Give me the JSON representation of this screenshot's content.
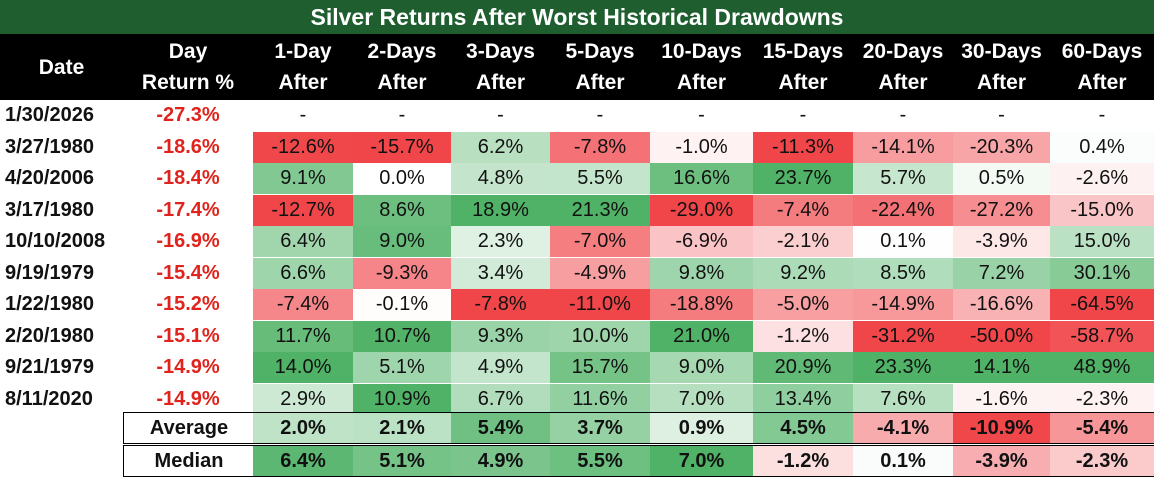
{
  "chart_data": {
    "type": "table",
    "title": "Silver Returns After Worst Historical Drawdowns",
    "columns": [
      {
        "line1": "Date",
        "line2": ""
      },
      {
        "line1": "Day",
        "line2": "Return %"
      },
      {
        "line1": "1-Day",
        "line2": "After"
      },
      {
        "line1": "2-Days",
        "line2": "After"
      },
      {
        "line1": "3-Days",
        "line2": "After"
      },
      {
        "line1": "5-Days",
        "line2": "After"
      },
      {
        "line1": "10-Days",
        "line2": "After"
      },
      {
        "line1": "15-Days",
        "line2": "After"
      },
      {
        "line1": "20-Days",
        "line2": "After"
      },
      {
        "line1": "30-Days",
        "line2": "After"
      },
      {
        "line1": "60-Days",
        "line2": "After"
      }
    ],
    "rows": [
      {
        "date": "1/30/2026",
        "day_return": "-27.3%",
        "values": [
          "-",
          "-",
          "-",
          "-",
          "-",
          "-",
          "-",
          "-",
          "-"
        ]
      },
      {
        "date": "3/27/1980",
        "day_return": "-18.6%",
        "values": [
          "-12.6%",
          "-15.7%",
          "6.2%",
          "-7.8%",
          "-1.0%",
          "-11.3%",
          "-14.1%",
          "-20.3%",
          "0.4%"
        ]
      },
      {
        "date": "4/20/2006",
        "day_return": "-18.4%",
        "values": [
          "9.1%",
          "0.0%",
          "4.8%",
          "5.5%",
          "16.6%",
          "23.7%",
          "5.7%",
          "0.5%",
          "-2.6%"
        ]
      },
      {
        "date": "3/17/1980",
        "day_return": "-17.4%",
        "values": [
          "-12.7%",
          "8.6%",
          "18.9%",
          "21.3%",
          "-29.0%",
          "-7.4%",
          "-22.4%",
          "-27.2%",
          "-15.0%"
        ]
      },
      {
        "date": "10/10/2008",
        "day_return": "-16.9%",
        "values": [
          "6.4%",
          "9.0%",
          "2.3%",
          "-7.0%",
          "-6.9%",
          "-2.1%",
          "0.1%",
          "-3.9%",
          "15.0%"
        ]
      },
      {
        "date": "9/19/1979",
        "day_return": "-15.4%",
        "values": [
          "6.6%",
          "-9.3%",
          "3.4%",
          "-4.9%",
          "9.8%",
          "9.2%",
          "8.5%",
          "7.2%",
          "30.1%"
        ]
      },
      {
        "date": "1/22/1980",
        "day_return": "-15.2%",
        "values": [
          "-7.4%",
          "-0.1%",
          "-7.8%",
          "-11.0%",
          "-18.8%",
          "-5.0%",
          "-14.9%",
          "-16.6%",
          "-64.5%"
        ]
      },
      {
        "date": "2/20/1980",
        "day_return": "-15.1%",
        "values": [
          "11.7%",
          "10.7%",
          "9.3%",
          "10.0%",
          "21.0%",
          "-1.2%",
          "-31.2%",
          "-50.0%",
          "-58.7%"
        ]
      },
      {
        "date": "9/21/1979",
        "day_return": "-14.9%",
        "values": [
          "14.0%",
          "5.1%",
          "4.9%",
          "15.7%",
          "9.0%",
          "20.9%",
          "23.3%",
          "14.1%",
          "48.9%"
        ]
      },
      {
        "date": "8/11/2020",
        "day_return": "-14.9%",
        "values": [
          "2.9%",
          "10.9%",
          "6.7%",
          "11.6%",
          "7.0%",
          "13.4%",
          "7.6%",
          "-1.6%",
          "-2.3%"
        ]
      }
    ],
    "summary": [
      {
        "label": "Average",
        "values": [
          "2.0%",
          "2.1%",
          "5.4%",
          "3.7%",
          "0.9%",
          "4.5%",
          "-4.1%",
          "-10.9%",
          "-5.4%"
        ]
      },
      {
        "label": "Median",
        "values": [
          "6.4%",
          "5.1%",
          "4.9%",
          "5.5%",
          "7.0%",
          "-1.2%",
          "0.1%",
          "-3.9%",
          "-2.3%"
        ]
      }
    ],
    "colors": {
      "title_bg": "#1e5e2f",
      "header_bg": "#000000",
      "positive_strong": "#4fb266",
      "negative_strong": "#f0464a",
      "neutral": "#ffffff",
      "day_return_text": "#e0231c"
    }
  }
}
